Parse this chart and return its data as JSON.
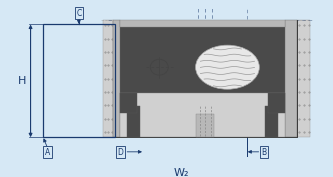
{
  "bg_color": "#d6e8f5",
  "line_color": "#1a3a6e",
  "dark_gray": "#4a4a4a",
  "mid_gray": "#7a7a7a",
  "light_gray": "#b8b8b8",
  "very_light_gray": "#d0d0d0",
  "white": "#f5f5f5",
  "labels": {
    "H": "H",
    "W2": "W₂",
    "A": "A",
    "B": "B",
    "C": "C",
    "D": "D"
  },
  "figsize": [
    3.33,
    1.77
  ],
  "dpi": 100,
  "xlim": [
    0,
    3.33
  ],
  "ylim": [
    0,
    1.77
  ]
}
